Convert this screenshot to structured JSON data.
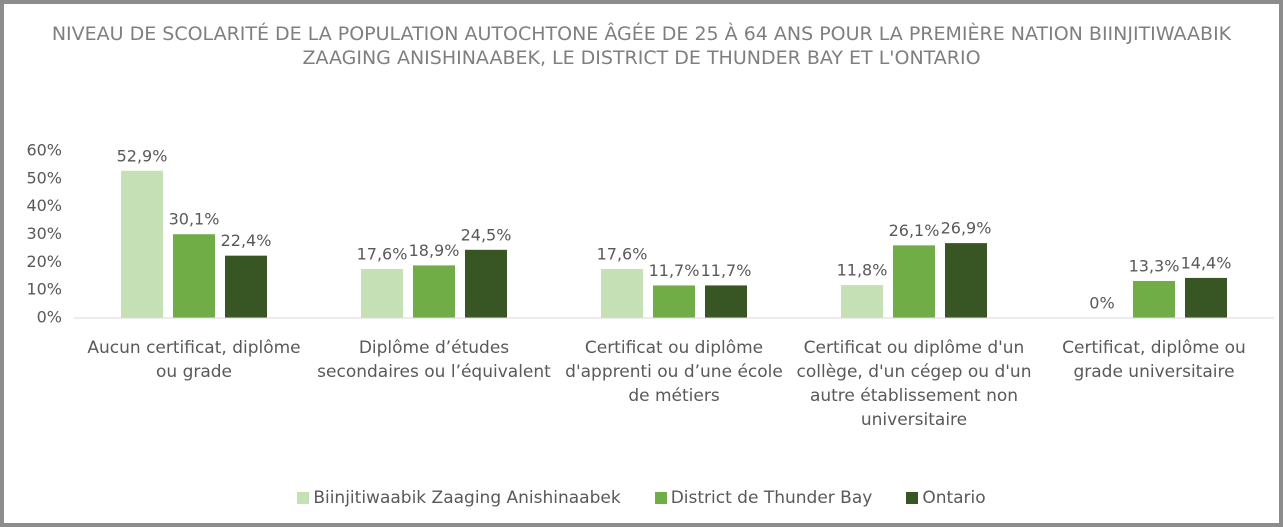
{
  "chart_data": {
    "type": "bar",
    "title": "NIVEAU DE SCOLARITÉ DE LA POPULATION AUTOCHTONE ÂGÉE DE 25 À 64 ANS POUR LA PREMIÈRE NATION BIINJITIWAABIK ZAAGING ANISHINAABEK, LE DISTRICT DE THUNDER BAY ET L'ONTARIO",
    "categories": [
      "Aucun certificat, diplôme ou grade",
      "Diplôme d’études secondaires ou l’équivalent",
      "Certificat ou diplôme d'apprenti ou d’une école de métiers",
      "Certificat ou diplôme d'un collège, d'un cégep ou d'un autre établissement non universitaire",
      "Certificat, diplôme ou grade universitaire"
    ],
    "series": [
      {
        "name": "Biinjitiwaabik Zaaging Anishinaabek",
        "color": "#c5e0b4",
        "values": [
          52.9,
          17.6,
          17.6,
          11.8,
          0
        ],
        "value_labels": [
          "52,9%",
          "17,6%",
          "17,6%",
          "11,8%",
          "0%"
        ]
      },
      {
        "name": "District de Thunder Bay",
        "color": "#70ad47",
        "values": [
          30.1,
          18.9,
          11.7,
          26.1,
          13.3
        ],
        "value_labels": [
          "30,1%",
          "18,9%",
          "11,7%",
          "26,1%",
          "13,3%"
        ]
      },
      {
        "name": "Ontario",
        "color": "#375623",
        "values": [
          22.4,
          24.5,
          11.7,
          26.9,
          14.4
        ],
        "value_labels": [
          "22,4%",
          "24,5%",
          "11,7%",
          "26,9%",
          "14,4%"
        ]
      }
    ],
    "ylim": [
      0,
      60
    ],
    "yticks": [
      {
        "value": 0,
        "label": "0%"
      },
      {
        "value": 10,
        "label": "10%"
      },
      {
        "value": 20,
        "label": "20%"
      },
      {
        "value": 30,
        "label": "30%"
      },
      {
        "value": 40,
        "label": "40%"
      },
      {
        "value": 50,
        "label": "50%"
      },
      {
        "value": 60,
        "label": "60%"
      }
    ],
    "legend": "bottom"
  }
}
